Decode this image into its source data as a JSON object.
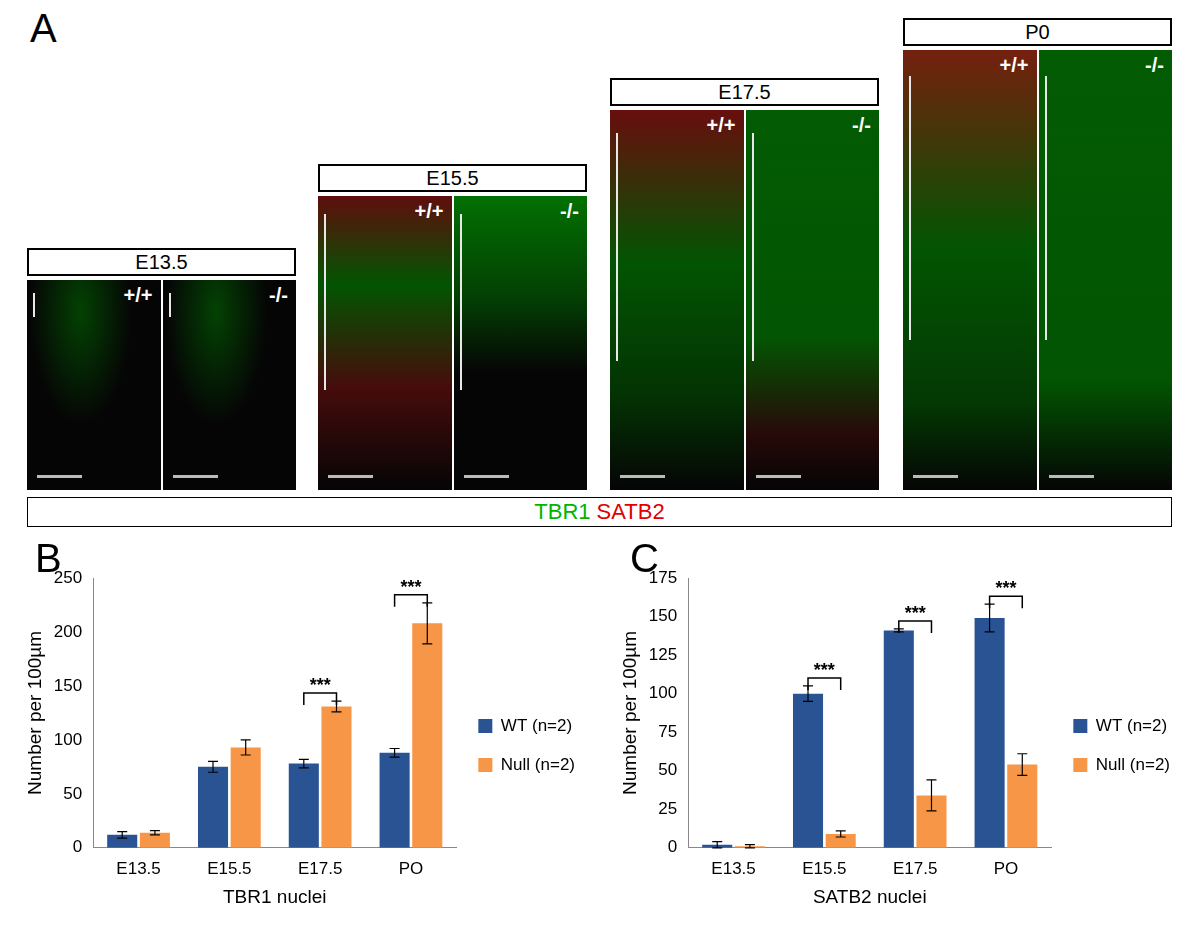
{
  "image_panel": {
    "label": "A",
    "stages": [
      {
        "name": "E13.5",
        "genotypes": [
          "+/+",
          "-/-"
        ]
      },
      {
        "name": "E15.5",
        "genotypes": [
          "+/+",
          "-/-"
        ]
      },
      {
        "name": "E17.5",
        "genotypes": [
          "+/+",
          "-/-"
        ]
      },
      {
        "name": "P0",
        "genotypes": [
          "+/+",
          "-/-"
        ]
      }
    ],
    "stain_labels": [
      {
        "text": "TBR1",
        "color": "#00b400"
      },
      {
        "text": "SATB2",
        "color": "#e00000"
      }
    ]
  },
  "chart_data": [
    {
      "panel": "B",
      "type": "bar",
      "categories": [
        "E13.5",
        "E15.5",
        "E17.5",
        "PO"
      ],
      "x_label": "TBR1 nuclei",
      "y_label": "Number per 100µm",
      "ylim": [
        0,
        250
      ],
      "yticks": [
        0,
        50,
        100,
        150,
        200,
        250
      ],
      "grid": false,
      "legend": "right",
      "series": [
        {
          "name": "WT (n=2)",
          "color": "#2a5394",
          "values": [
            12,
            75,
            78,
            88
          ],
          "errors": [
            3,
            5,
            4,
            4
          ]
        },
        {
          "name": "Null (n=2)",
          "color": "#f79646",
          "values": [
            14,
            93,
            131,
            208
          ],
          "errors": [
            2,
            7,
            5,
            19
          ]
        }
      ],
      "annotations": [
        {
          "text": "***",
          "category": "E17.5"
        },
        {
          "text": "***",
          "category": "PO"
        }
      ]
    },
    {
      "panel": "C",
      "type": "bar",
      "categories": [
        "E13.5",
        "E15.5",
        "E17.5",
        "PO"
      ],
      "x_label": "SATB2 nuclei",
      "y_label": "Number per 100µm",
      "ylim": [
        0,
        175
      ],
      "yticks": [
        0,
        25,
        50,
        75,
        100,
        125,
        150,
        175
      ],
      "grid": false,
      "legend": "right",
      "series": [
        {
          "name": "WT (n=2)",
          "color": "#2a5394",
          "values": [
            2,
            100,
            141,
            149
          ],
          "errors": [
            2,
            5,
            1,
            9
          ]
        },
        {
          "name": "Null (n=2)",
          "color": "#f79646",
          "values": [
            1,
            9,
            34,
            54
          ],
          "errors": [
            1,
            2,
            10,
            7
          ]
        }
      ],
      "annotations": [
        {
          "text": "***",
          "category": "E15.5"
        },
        {
          "text": "***",
          "category": "E17.5"
        },
        {
          "text": "***",
          "category": "PO"
        }
      ]
    }
  ]
}
